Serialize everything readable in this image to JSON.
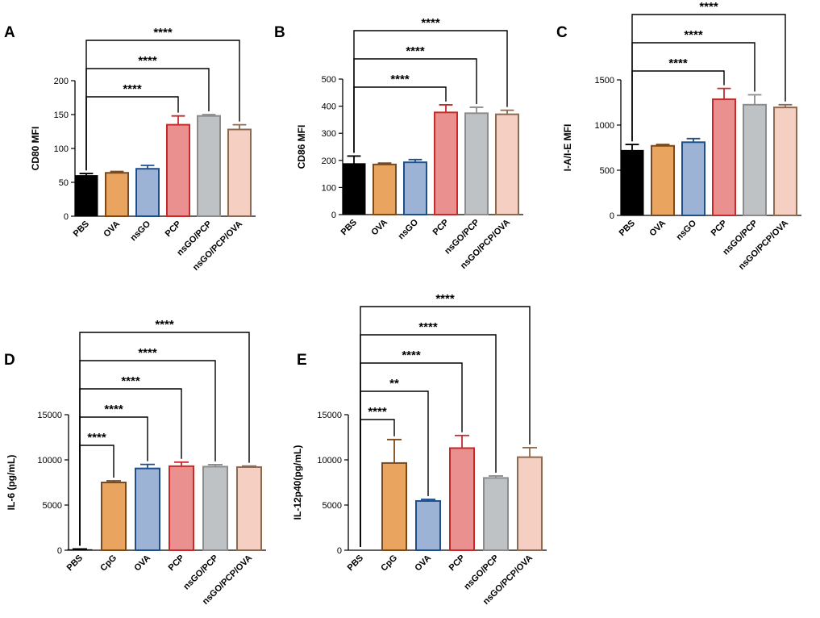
{
  "colors": {
    "PBS": {
      "fill": "#000000",
      "stroke": "#000000"
    },
    "OVA_A": {
      "fill": "#E9A45F",
      "stroke": "#7A4A1E"
    },
    "nsGO": {
      "fill": "#9DB3D6",
      "stroke": "#1F4E8C"
    },
    "PCP": {
      "fill": "#EA918F",
      "stroke": "#C52B2B"
    },
    "nsGO/PCP": {
      "fill": "#BFC2C5",
      "stroke": "#8C8C8C"
    },
    "nsGO/PCP/OVA": {
      "fill": "#F4CFC2",
      "stroke": "#8C6A52"
    },
    "CpG": {
      "fill": "#E9A45F",
      "stroke": "#7A4A1E"
    },
    "OVA_DE": {
      "fill": "#9DB3D6",
      "stroke": "#1F4E8C"
    }
  },
  "chart_data": [
    {
      "panel": "A",
      "type": "bar",
      "ylabel": "CD80 MFI",
      "ylim": [
        0,
        200
      ],
      "yticks": [
        0,
        50,
        100,
        150,
        200
      ],
      "categories": [
        "PBS",
        "OVA",
        "nsGO",
        "PCP",
        "nsGO/PCP",
        "nsGO/PCP/OVA"
      ],
      "color_keys": [
        "PBS",
        "OVA_A",
        "nsGO",
        "PCP",
        "nsGO/PCP",
        "nsGO/PCP/OVA"
      ],
      "values": [
        60,
        64,
        70,
        135,
        148,
        128
      ],
      "errors": [
        3,
        2,
        5,
        13,
        2,
        7
      ],
      "comparisons": [
        {
          "from": 0,
          "to": 3,
          "label": "****"
        },
        {
          "from": 0,
          "to": 4,
          "label": "****"
        },
        {
          "from": 0,
          "to": 5,
          "label": "****"
        }
      ]
    },
    {
      "panel": "B",
      "type": "bar",
      "ylabel": "CD86 MFI",
      "ylim": [
        0,
        500
      ],
      "yticks": [
        0,
        100,
        200,
        300,
        400,
        500
      ],
      "categories": [
        "PBS",
        "OVA",
        "nsGO",
        "PCP",
        "nsGO/PCP",
        "nsGO/PCP/OVA"
      ],
      "color_keys": [
        "PBS",
        "OVA_A",
        "nsGO",
        "PCP",
        "nsGO/PCP",
        "nsGO/PCP/OVA"
      ],
      "values": [
        188,
        185,
        193,
        377,
        374,
        370
      ],
      "errors": [
        28,
        5,
        10,
        28,
        22,
        15
      ],
      "comparisons": [
        {
          "from": 0,
          "to": 3,
          "label": "****"
        },
        {
          "from": 0,
          "to": 4,
          "label": "****"
        },
        {
          "from": 0,
          "to": 5,
          "label": "****"
        }
      ]
    },
    {
      "panel": "C",
      "type": "bar",
      "ylabel": "I-A/I-E MFI",
      "ylim": [
        0,
        1500
      ],
      "yticks": [
        0,
        500,
        1000,
        1500
      ],
      "categories": [
        "PBS",
        "OVA",
        "nsGO",
        "PCP",
        "nsGO/PCP",
        "nsGO/PCP/OVA"
      ],
      "color_keys": [
        "PBS",
        "OVA_A",
        "nsGO",
        "PCP",
        "nsGO/PCP",
        "nsGO/PCP/OVA"
      ],
      "values": [
        720,
        770,
        810,
        1285,
        1225,
        1195
      ],
      "errors": [
        65,
        15,
        40,
        120,
        110,
        30
      ],
      "comparisons": [
        {
          "from": 0,
          "to": 3,
          "label": "****"
        },
        {
          "from": 0,
          "to": 4,
          "label": "****"
        },
        {
          "from": 0,
          "to": 5,
          "label": "****"
        }
      ]
    },
    {
      "panel": "D",
      "type": "bar",
      "ylabel": "IL-6 (pg/mL)",
      "ylim": [
        0,
        15000
      ],
      "yticks": [
        0,
        5000,
        10000,
        15000
      ],
      "categories": [
        "PBS",
        "CpG",
        "OVA",
        "PCP",
        "nsGO/PCP",
        "nsGO/PCP/OVA"
      ],
      "color_keys": [
        "PBS",
        "CpG",
        "OVA_DE",
        "PCP",
        "nsGO/PCP",
        "nsGO/PCP/OVA"
      ],
      "values": [
        60,
        7500,
        9050,
        9300,
        9250,
        9200
      ],
      "errors": [
        80,
        180,
        450,
        450,
        220,
        120
      ],
      "comparisons": [
        {
          "from": 0,
          "to": 1,
          "label": "****"
        },
        {
          "from": 0,
          "to": 2,
          "label": "****"
        },
        {
          "from": 0,
          "to": 3,
          "label": "****"
        },
        {
          "from": 0,
          "to": 4,
          "label": "****"
        },
        {
          "from": 0,
          "to": 5,
          "label": "****"
        }
      ]
    },
    {
      "panel": "E",
      "type": "bar",
      "ylabel": "IL-12p40(pg/mL)",
      "ylim": [
        0,
        15000
      ],
      "yticks": [
        0,
        5000,
        10000,
        15000
      ],
      "categories": [
        "PBS",
        "CpG",
        "OVA",
        "PCP",
        "nsGO/PCP",
        "nsGO/PCP/OVA"
      ],
      "color_keys": [
        "PBS",
        "CpG",
        "OVA_DE",
        "PCP",
        "nsGO/PCP",
        "nsGO/PCP/OVA"
      ],
      "values": [
        0,
        9650,
        5450,
        11300,
        8000,
        10300
      ],
      "errors": [
        0,
        2600,
        180,
        1400,
        220,
        1050
      ],
      "comparisons": [
        {
          "from": 0,
          "to": 1,
          "label": "****"
        },
        {
          "from": 0,
          "to": 2,
          "label": "**"
        },
        {
          "from": 0,
          "to": 3,
          "label": "****"
        },
        {
          "from": 0,
          "to": 4,
          "label": "****"
        },
        {
          "from": 0,
          "to": 5,
          "label": "****"
        }
      ]
    }
  ]
}
